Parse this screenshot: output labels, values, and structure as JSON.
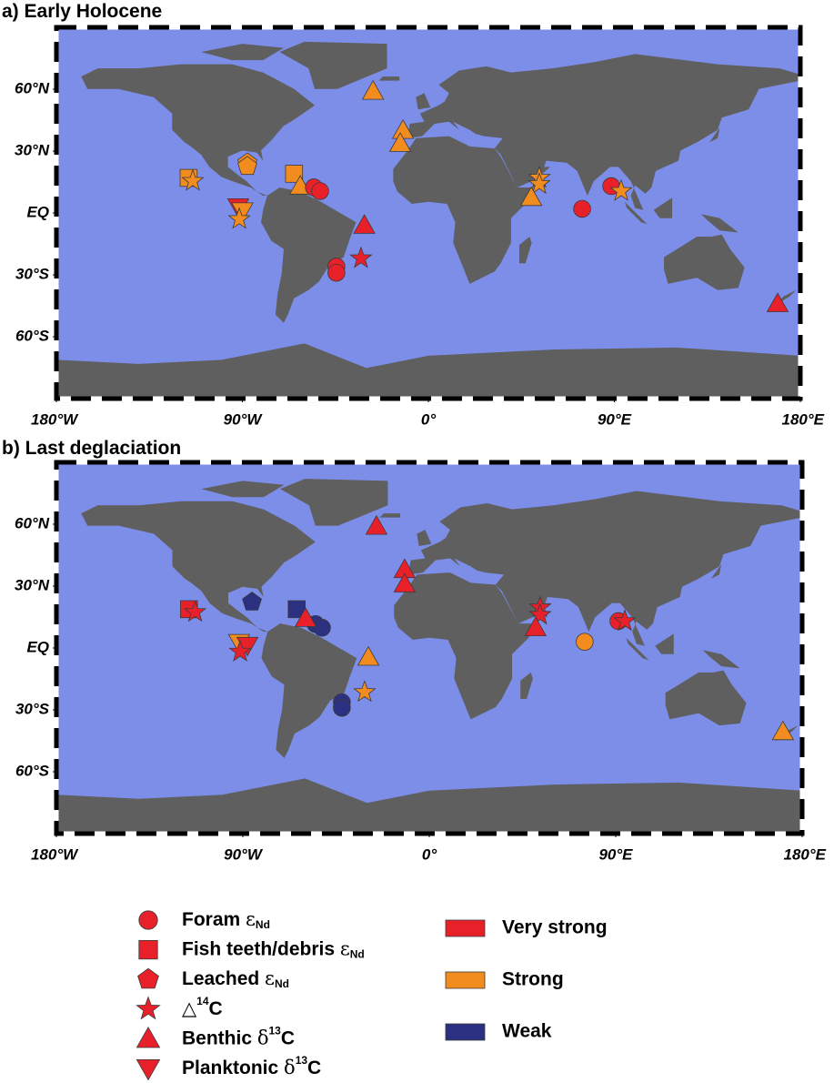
{
  "panels": [
    {
      "title": "a) Early Holocene",
      "xlim": [
        -180,
        180
      ],
      "ylim": [
        -90,
        90
      ],
      "xticks": [
        {
          "value": -180,
          "label": "180°W"
        },
        {
          "value": -90,
          "label": "90°W"
        },
        {
          "value": 0,
          "label": "0°"
        },
        {
          "value": 90,
          "label": "90°E"
        },
        {
          "value": 180,
          "label": "180°E"
        }
      ],
      "yticks": [
        {
          "value": 60,
          "label": "60°N"
        },
        {
          "value": 30,
          "label": "30°N"
        },
        {
          "value": 0,
          "label": "EQ"
        },
        {
          "value": -30,
          "label": "30°S"
        },
        {
          "value": -60,
          "label": "60°S"
        }
      ],
      "markers": [
        {
          "lon": -116,
          "lat": 17,
          "shape": "square",
          "color": "#f28c1e"
        },
        {
          "lon": -114,
          "lat": 15.5,
          "shape": "star",
          "color": "#f28c1e"
        },
        {
          "lon": -87.6,
          "lat": 24.2,
          "shape": "pentagon",
          "color": "#f28c1e"
        },
        {
          "lon": -87.6,
          "lat": 22.6,
          "shape": "pentagon",
          "color": "#f28c1e"
        },
        {
          "lon": -65,
          "lat": 19,
          "shape": "square",
          "color": "#f28c1e"
        },
        {
          "lon": -62,
          "lat": 13,
          "shape": "triangle",
          "color": "#f28c1e"
        },
        {
          "lon": -55.4,
          "lat": 12.4,
          "shape": "circle",
          "color": "#e8202a"
        },
        {
          "lon": -52.4,
          "lat": 10.6,
          "shape": "circle",
          "color": "#e8202a"
        },
        {
          "lon": -92,
          "lat": 3,
          "shape": "triangle-down",
          "color": "#e8202a"
        },
        {
          "lon": -90,
          "lat": 1,
          "shape": "triangle-down",
          "color": "#f28c1e"
        },
        {
          "lon": -91.5,
          "lat": -3,
          "shape": "star",
          "color": "#f28c1e"
        },
        {
          "lon": -31,
          "lat": -6,
          "shape": "triangle",
          "color": "#e8202a"
        },
        {
          "lon": -32.6,
          "lat": -22,
          "shape": "star",
          "color": "#e8202a"
        },
        {
          "lon": -44.5,
          "lat": -26,
          "shape": "circle",
          "color": "#e8202a"
        },
        {
          "lon": -44.5,
          "lat": -29,
          "shape": "circle",
          "color": "#e8202a"
        },
        {
          "lon": -26.8,
          "lat": 59,
          "shape": "triangle",
          "color": "#f28c1e"
        },
        {
          "lon": -12.3,
          "lat": 40,
          "shape": "triangle",
          "color": "#f28c1e"
        },
        {
          "lon": -13.6,
          "lat": 33.7,
          "shape": "triangle",
          "color": "#f28c1e"
        },
        {
          "lon": 53.7,
          "lat": 17,
          "shape": "star",
          "color": "#f28c1e"
        },
        {
          "lon": 53.7,
          "lat": 14,
          "shape": "star",
          "color": "#f28c1e"
        },
        {
          "lon": 49.8,
          "lat": 7.5,
          "shape": "triangle",
          "color": "#f28c1e"
        },
        {
          "lon": 74.4,
          "lat": 2,
          "shape": "circle",
          "color": "#e8202a"
        },
        {
          "lon": 88.5,
          "lat": 13,
          "shape": "circle",
          "color": "#e8202a"
        },
        {
          "lon": 93.3,
          "lat": 10.6,
          "shape": "star",
          "color": "#f28c1e"
        },
        {
          "lon": 169,
          "lat": -44,
          "shape": "triangle",
          "color": "#e8202a"
        }
      ]
    },
    {
      "title": "b) Last deglaciation",
      "xlim": [
        -180,
        180
      ],
      "ylim": [
        -90,
        90
      ],
      "xticks": [
        {
          "value": -180,
          "label": "180°W"
        },
        {
          "value": -90,
          "label": "90°W"
        },
        {
          "value": 0,
          "label": "0°"
        },
        {
          "value": 90,
          "label": "90°E"
        },
        {
          "value": 180,
          "label": "180°E"
        }
      ],
      "yticks": [
        {
          "value": 60,
          "label": "60°N"
        },
        {
          "value": 30,
          "label": "30°N"
        },
        {
          "value": 0,
          "label": "EQ"
        },
        {
          "value": -30,
          "label": "30°S"
        },
        {
          "value": -60,
          "label": "60°S"
        }
      ],
      "markers": [
        {
          "lon": -116,
          "lat": 18.8,
          "shape": "square",
          "color": "#e8202a"
        },
        {
          "lon": -113,
          "lat": 17.4,
          "shape": "star",
          "color": "#e8202a"
        },
        {
          "lon": -85.6,
          "lat": 22.3,
          "shape": "pentagon",
          "color": "#2b3080"
        },
        {
          "lon": -64,
          "lat": 18.8,
          "shape": "square",
          "color": "#2b3080"
        },
        {
          "lon": -54.9,
          "lat": 11.6,
          "shape": "circle",
          "color": "#2b3080"
        },
        {
          "lon": -51.8,
          "lat": 9.8,
          "shape": "circle",
          "color": "#2b3080"
        },
        {
          "lon": -59.7,
          "lat": 14.3,
          "shape": "triangle",
          "color": "#e8202a"
        },
        {
          "lon": -91.8,
          "lat": 2.7,
          "shape": "triangle-down",
          "color": "#f28c1e"
        },
        {
          "lon": -87.8,
          "lat": 1.3,
          "shape": "triangle-down",
          "color": "#e8202a"
        },
        {
          "lon": -91.3,
          "lat": -1.8,
          "shape": "star",
          "color": "#e8202a"
        },
        {
          "lon": -29.4,
          "lat": -4.5,
          "shape": "triangle",
          "color": "#f28c1e"
        },
        {
          "lon": -31.2,
          "lat": -21.4,
          "shape": "star",
          "color": "#f28c1e"
        },
        {
          "lon": -42.2,
          "lat": -26.3,
          "shape": "circle",
          "color": "#2b3080"
        },
        {
          "lon": -42.2,
          "lat": -29,
          "shape": "circle",
          "color": "#2b3080"
        },
        {
          "lon": -25.5,
          "lat": 59,
          "shape": "triangle",
          "color": "#e8202a"
        },
        {
          "lon": -11.9,
          "lat": 38,
          "shape": "triangle",
          "color": "#e8202a"
        },
        {
          "lon": -11.9,
          "lat": 31,
          "shape": "triangle",
          "color": "#e8202a"
        },
        {
          "lon": 53.5,
          "lat": 19.6,
          "shape": "star",
          "color": "#e8202a"
        },
        {
          "lon": 53.5,
          "lat": 16,
          "shape": "star",
          "color": "#e8202a"
        },
        {
          "lon": 51.3,
          "lat": 9.8,
          "shape": "triangle",
          "color": "#e8202a"
        },
        {
          "lon": 75,
          "lat": 3,
          "shape": "circle",
          "color": "#f28c1e"
        },
        {
          "lon": 91.3,
          "lat": 13,
          "shape": "circle",
          "color": "#e8202a"
        },
        {
          "lon": 94.4,
          "lat": 13,
          "shape": "star",
          "color": "#e8202a"
        },
        {
          "lon": 170.7,
          "lat": -40.6,
          "shape": "triangle",
          "color": "#f28c1e"
        }
      ]
    }
  ],
  "legend": {
    "symbol_color": "#e8202a",
    "symbols": [
      {
        "shape": "circle",
        "parts": [
          {
            "text": "Foram "
          },
          {
            "text": "ε"
          },
          {
            "text": "Nd",
            "style": "sub"
          }
        ]
      },
      {
        "shape": "square",
        "parts": [
          {
            "text": "Fish teeth/debris "
          },
          {
            "text": "ε"
          },
          {
            "text": "Nd",
            "style": "sub"
          }
        ]
      },
      {
        "shape": "pentagon",
        "parts": [
          {
            "text": "Leached "
          },
          {
            "text": "ε"
          },
          {
            "text": "Nd",
            "style": "sub"
          }
        ]
      },
      {
        "shape": "star",
        "parts": [
          {
            "text": "△"
          },
          {
            "text": "14",
            "style": "sup"
          },
          {
            "text": "C"
          }
        ]
      },
      {
        "shape": "triangle",
        "parts": [
          {
            "text": "Benthic "
          },
          {
            "text": "δ"
          },
          {
            "text": "13",
            "style": "sup"
          },
          {
            "text": "C"
          }
        ]
      },
      {
        "shape": "triangle-down",
        "parts": [
          {
            "text": "Planktonic "
          },
          {
            "text": "δ"
          },
          {
            "text": "13",
            "style": "sup"
          },
          {
            "text": "C"
          }
        ]
      }
    ],
    "strengths": [
      {
        "label": "Very strong",
        "color": "#e8202a"
      },
      {
        "label": "Strong",
        "color": "#f28c1e"
      },
      {
        "label": "Weak",
        "color": "#2b3080"
      }
    ]
  }
}
